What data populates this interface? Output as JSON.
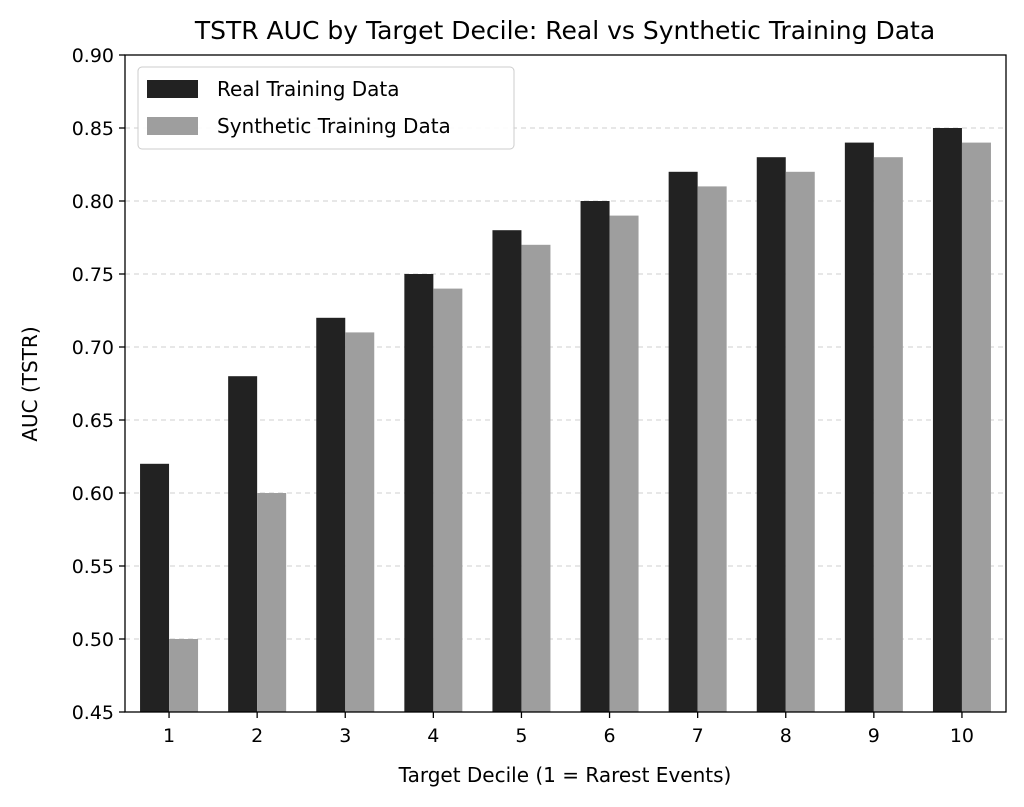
{
  "chart_data": {
    "type": "bar",
    "title": "TSTR AUC by Target Decile: Real vs Synthetic Training Data",
    "xlabel": "Target Decile (1 = Rarest Events)",
    "ylabel": "AUC (TSTR)",
    "categories": [
      "1",
      "2",
      "3",
      "4",
      "5",
      "6",
      "7",
      "8",
      "9",
      "10"
    ],
    "series": [
      {
        "name": "Real Training Data",
        "color": "#222222",
        "values": [
          0.62,
          0.68,
          0.72,
          0.75,
          0.78,
          0.8,
          0.82,
          0.83,
          0.84,
          0.85
        ]
      },
      {
        "name": "Synthetic Training Data",
        "color": "#9e9e9e",
        "values": [
          0.5,
          0.6,
          0.71,
          0.74,
          0.77,
          0.79,
          0.81,
          0.82,
          0.83,
          0.84
        ]
      }
    ],
    "ylim": [
      0.45,
      0.9
    ],
    "yticks": [
      "0.45",
      "0.50",
      "0.55",
      "0.60",
      "0.65",
      "0.70",
      "0.75",
      "0.80",
      "0.85",
      "0.90"
    ],
    "grid": "y-dashed",
    "legend_position": "top-left"
  }
}
